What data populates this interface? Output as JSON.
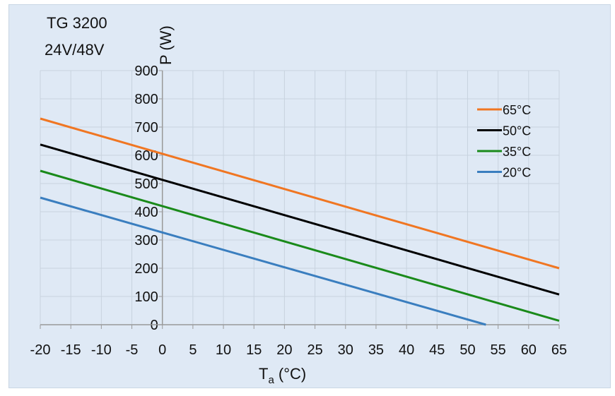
{
  "chart_data": {
    "type": "line",
    "title_lines": [
      "TG 3200",
      "24V/48V"
    ],
    "xlabel_main": "T",
    "xlabel_sub": "a",
    "xlabel_unit": " (°C)",
    "ylabel": "P (W)",
    "xlim": [
      -20,
      65
    ],
    "ylim": [
      0,
      900
    ],
    "x_ticks": [
      -20,
      -15,
      -10,
      -5,
      0,
      5,
      10,
      15,
      20,
      25,
      30,
      35,
      40,
      45,
      50,
      55,
      60,
      65
    ],
    "y_ticks": [
      0,
      100,
      200,
      300,
      400,
      500,
      600,
      700,
      800,
      900
    ],
    "grid": true,
    "legend_position": "top-right",
    "series": [
      {
        "name": "65°C",
        "color": "#f07622",
        "x": [
          -20,
          65
        ],
        "y": [
          730,
          200
        ]
      },
      {
        "name": "50°C",
        "color": "#000000",
        "x": [
          -20,
          65
        ],
        "y": [
          638,
          107
        ]
      },
      {
        "name": "35°C",
        "color": "#1a8a1a",
        "x": [
          -20,
          65
        ],
        "y": [
          545,
          14
        ]
      },
      {
        "name": "20°C",
        "color": "#3a7ebf",
        "x": [
          -20,
          53
        ],
        "y": [
          450,
          0
        ]
      }
    ]
  }
}
